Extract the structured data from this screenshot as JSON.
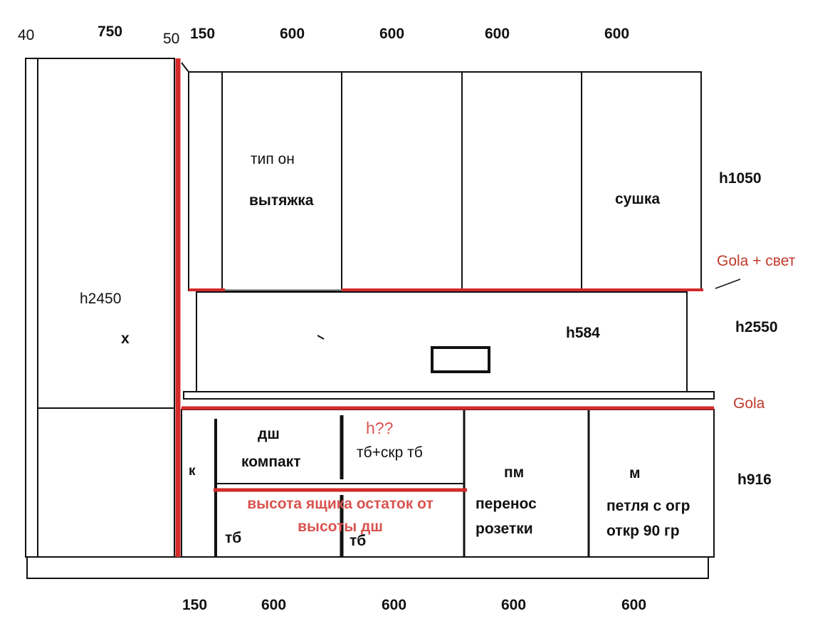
{
  "top_dimensions": [
    "40",
    "750",
    "50",
    "150",
    "600",
    "600",
    "600",
    "600"
  ],
  "bottom_dimensions": [
    "150",
    "600",
    "600",
    "600",
    "600"
  ],
  "heights": {
    "upper": "h1050",
    "backsplash": "h584",
    "total": "h2550",
    "lower": "h916",
    "tall": "h2450"
  },
  "tall_unit": {
    "mark": "x"
  },
  "upper": {
    "hood_type": "тип он",
    "hood": "вытяжка",
    "dryer": "сушка"
  },
  "gola_light": "Gola + свет",
  "gola": "Gola",
  "lower": {
    "k": "к",
    "dw_line1": "дш",
    "dw_line2": "компакт",
    "h_question": "h??",
    "tb_hidden": "тб+скр тб",
    "drawer_note": "высота ящика остаток от высоты дш",
    "tb1": "тб",
    "tb2": "тб",
    "pm": "пм",
    "socket_line1": "перенос",
    "socket_line2": "розетки",
    "m": "м",
    "hinge_line1": "петля с огр",
    "hinge_line2": "откр 90 гр"
  },
  "colors": {
    "red_line": "#d42a2a",
    "red_text": "#c0392b",
    "line": "#111111"
  }
}
